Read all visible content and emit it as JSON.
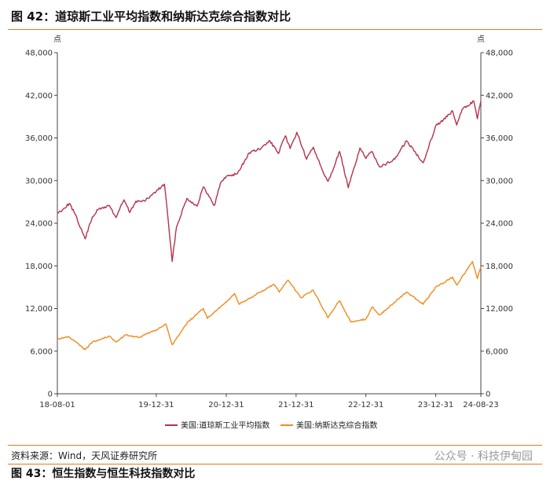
{
  "figure_title": "图 42：道琼斯工业平均指数和纳斯达克综合指数对比",
  "source_note": "资料来源：Wind，天风证券研究所",
  "watermark": "公众号 · 科技伊甸园",
  "next_figure_title": "图 43：恒生指数与恒生科技指数对比",
  "colors": {
    "dow": "#b5324a",
    "nasdaq": "#f08a1c",
    "rule": "#e07b22",
    "axis": "#444444"
  },
  "chart_data": {
    "type": "line",
    "y_unit_left": "点",
    "y_unit_right": "点",
    "ylim": [
      0,
      48000
    ],
    "y_ticks": [
      0,
      6000,
      12000,
      18000,
      24000,
      30000,
      36000,
      42000,
      48000
    ],
    "y_tick_labels": [
      "0",
      "6,000",
      "12,000",
      "18,000",
      "24,000",
      "30,000",
      "36,000",
      "42,000",
      "48,000"
    ],
    "x_range": [
      "2018-08-01",
      "2024-08-23"
    ],
    "x_ticks": [
      "2018-08-01",
      "2019-12-31",
      "2020-12-31",
      "2021-12-31",
      "2022-12-31",
      "2023-12-31",
      "2024-08-23"
    ],
    "x_tick_labels": [
      "18-08-01",
      "19-12-31",
      "20-12-31",
      "21-12-31",
      "22-12-31",
      "23-12-31",
      "24-08-23"
    ],
    "legend_position": "bottom-center",
    "series": [
      {
        "name": "美国:道琼斯工业平均指数",
        "color": "#b5324a",
        "points": [
          [
            "2018-08-01",
            25400
          ],
          [
            "2018-09-01",
            26000
          ],
          [
            "2018-10-03",
            26800
          ],
          [
            "2018-11-01",
            25300
          ],
          [
            "2018-12-24",
            21800
          ],
          [
            "2019-01-31",
            24900
          ],
          [
            "2019-03-01",
            25900
          ],
          [
            "2019-04-30",
            26500
          ],
          [
            "2019-06-03",
            24800
          ],
          [
            "2019-07-15",
            27300
          ],
          [
            "2019-08-15",
            25500
          ],
          [
            "2019-09-15",
            27100
          ],
          [
            "2019-10-31",
            27100
          ],
          [
            "2019-12-31",
            28500
          ],
          [
            "2020-02-12",
            29500
          ],
          [
            "2020-02-28",
            25400
          ],
          [
            "2020-03-23",
            18600
          ],
          [
            "2020-04-15",
            23500
          ],
          [
            "2020-06-08",
            27500
          ],
          [
            "2020-07-31",
            26400
          ],
          [
            "2020-09-02",
            29100
          ],
          [
            "2020-10-30",
            26500
          ],
          [
            "2020-11-30",
            29600
          ],
          [
            "2020-12-31",
            30600
          ],
          [
            "2021-02-28",
            31000
          ],
          [
            "2021-04-30",
            33900
          ],
          [
            "2021-06-30",
            34500
          ],
          [
            "2021-08-16",
            35600
          ],
          [
            "2021-09-30",
            33800
          ],
          [
            "2021-11-05",
            36300
          ],
          [
            "2021-11-30",
            34500
          ],
          [
            "2022-01-04",
            36800
          ],
          [
            "2022-02-24",
            33000
          ],
          [
            "2022-03-31",
            34700
          ],
          [
            "2022-05-20",
            31300
          ],
          [
            "2022-06-17",
            29900
          ],
          [
            "2022-08-16",
            34100
          ],
          [
            "2022-09-30",
            29000
          ],
          [
            "2022-11-30",
            34600
          ],
          [
            "2022-12-31",
            33100
          ],
          [
            "2023-01-31",
            34100
          ],
          [
            "2023-03-15",
            31900
          ],
          [
            "2023-05-31",
            33000
          ],
          [
            "2023-07-31",
            35600
          ],
          [
            "2023-10-27",
            32500
          ],
          [
            "2023-12-31",
            37700
          ],
          [
            "2024-02-29",
            39000
          ],
          [
            "2024-03-28",
            39800
          ],
          [
            "2024-04-19",
            37800
          ],
          [
            "2024-05-17",
            40000
          ],
          [
            "2024-07-17",
            41200
          ],
          [
            "2024-08-05",
            38700
          ],
          [
            "2024-08-23",
            41200
          ]
        ]
      },
      {
        "name": "美国:纳斯达克综合指数",
        "color": "#f08a1c",
        "points": [
          [
            "2018-08-01",
            7700
          ],
          [
            "2018-10-01",
            8000
          ],
          [
            "2018-12-24",
            6200
          ],
          [
            "2019-01-31",
            7300
          ],
          [
            "2019-04-30",
            8100
          ],
          [
            "2019-06-03",
            7300
          ],
          [
            "2019-07-26",
            8300
          ],
          [
            "2019-10-01",
            7900
          ],
          [
            "2019-12-31",
            9000
          ],
          [
            "2020-02-19",
            9800
          ],
          [
            "2020-03-23",
            6900
          ],
          [
            "2020-06-10",
            10000
          ],
          [
            "2020-09-02",
            12000
          ],
          [
            "2020-09-23",
            10600
          ],
          [
            "2020-12-31",
            12900
          ],
          [
            "2021-02-12",
            14100
          ],
          [
            "2021-03-08",
            12600
          ],
          [
            "2021-09-07",
            15400
          ],
          [
            "2021-10-04",
            14300
          ],
          [
            "2021-11-19",
            16000
          ],
          [
            "2022-01-27",
            13500
          ],
          [
            "2022-03-29",
            14600
          ],
          [
            "2022-06-16",
            10700
          ],
          [
            "2022-08-15",
            13100
          ],
          [
            "2022-10-13",
            10100
          ],
          [
            "2022-12-31",
            10500
          ],
          [
            "2023-02-02",
            12200
          ],
          [
            "2023-03-13",
            11100
          ],
          [
            "2023-07-31",
            14300
          ],
          [
            "2023-10-27",
            12600
          ],
          [
            "2023-12-31",
            15000
          ],
          [
            "2024-03-28",
            16400
          ],
          [
            "2024-04-19",
            15300
          ],
          [
            "2024-07-10",
            18600
          ],
          [
            "2024-08-05",
            16200
          ],
          [
            "2024-08-23",
            17900
          ]
        ]
      }
    ]
  }
}
